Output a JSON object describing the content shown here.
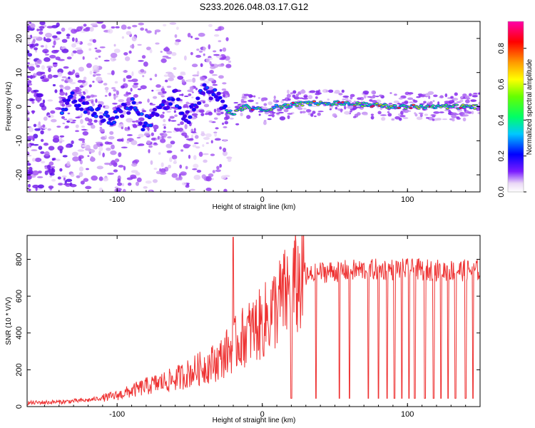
{
  "title": "S233.2026.048.03.17.G12",
  "chart_data": [
    {
      "type": "heatmap",
      "xlabel": "Height of straight line (km)",
      "ylabel": "Frequency (Hz)",
      "xlim": [
        -162,
        150
      ],
      "ylim": [
        -25,
        25
      ],
      "xticks": [
        -100,
        0,
        100
      ],
      "yticks": [
        -20,
        -10,
        0,
        10,
        20
      ],
      "colorbar": {
        "label": "Normalized spectral amplitude",
        "range": [
          0,
          0.95
        ],
        "ticks": [
          "0.0",
          "0.2",
          "0.4",
          "0.6",
          "0.8"
        ],
        "tick_values": [
          0.0,
          0.2,
          0.4,
          0.6,
          0.8
        ]
      },
      "ridge": [
        {
          "x": -135,
          "f": 3
        },
        {
          "x": -125,
          "f": 1
        },
        {
          "x": -115,
          "f": -1
        },
        {
          "x": -105,
          "f": -4
        },
        {
          "x": -98,
          "f": -2
        },
        {
          "x": -90,
          "f": 1
        },
        {
          "x": -82,
          "f": -5
        },
        {
          "x": -75,
          "f": -3
        },
        {
          "x": -68,
          "f": 0
        },
        {
          "x": -60,
          "f": 3
        },
        {
          "x": -52,
          "f": -4
        },
        {
          "x": -45,
          "f": 2
        },
        {
          "x": -38,
          "f": 5
        },
        {
          "x": -32,
          "f": 4
        },
        {
          "x": -26,
          "f": -1
        },
        {
          "x": -20,
          "f": -2
        },
        {
          "x": -12,
          "f": 0
        },
        {
          "x": 0,
          "f": -1
        },
        {
          "x": 10,
          "f": 0
        },
        {
          "x": 30,
          "f": 1
        },
        {
          "x": 60,
          "f": 1
        },
        {
          "x": 90,
          "f": 0
        },
        {
          "x": 120,
          "f": 0
        },
        {
          "x": 148,
          "f": 0
        }
      ]
    },
    {
      "type": "line",
      "xlabel": "Height of straight line (km)",
      "ylabel": "SNR (10 * V/V)",
      "xlim": [
        -162,
        150
      ],
      "ylim": [
        0,
        930
      ],
      "xticks": [
        -100,
        0,
        100
      ],
      "yticks": [
        0,
        200,
        400,
        600,
        800
      ],
      "series": [
        {
          "name": "SNR",
          "color": "#ee3333",
          "trend_x": [
            -162,
            -140,
            -120,
            -100,
            -80,
            -60,
            -45,
            -30,
            -20,
            -10,
            0,
            10,
            20,
            30,
            40,
            60,
            80,
            100,
            120,
            150
          ],
          "trend_y": [
            20,
            25,
            35,
            60,
            110,
            150,
            200,
            250,
            330,
            400,
            450,
            550,
            640,
            700,
            730,
            740,
            745,
            745,
            740,
            740
          ],
          "noise_amplitude": 60,
          "spike": {
            "x": -20,
            "y": 920
          },
          "dropouts_x": [
            20,
            37,
            53,
            60,
            73,
            80,
            86,
            91,
            96,
            101,
            105,
            112,
            118,
            123,
            128,
            133,
            140,
            145
          ]
        }
      ]
    }
  ]
}
